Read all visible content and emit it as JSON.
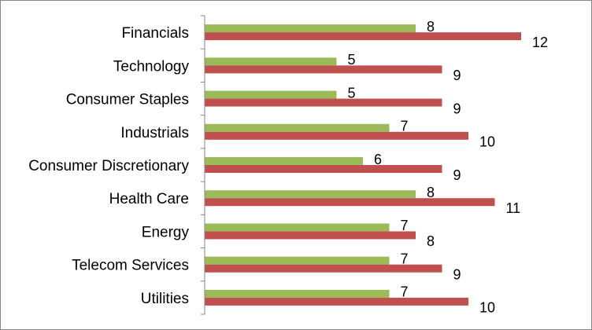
{
  "chart_data": {
    "type": "bar",
    "orientation": "horizontal",
    "categories": [
      "Financials",
      "Technology",
      "Consumer Staples",
      "Industrials",
      "Consumer Discretionary",
      "Health Care",
      "Energy",
      "Telecom Services",
      "Utilities"
    ],
    "series": [
      {
        "color": "#9BBB59",
        "values": [
          8,
          5,
          5,
          7,
          6,
          8,
          7,
          7,
          7
        ]
      },
      {
        "color": "#C0504D",
        "values": [
          12,
          9,
          9,
          10,
          9,
          11,
          8,
          9,
          10
        ]
      }
    ],
    "xlim": [
      0,
      14
    ],
    "grid": false,
    "legend": "none",
    "data_labels": true
  }
}
